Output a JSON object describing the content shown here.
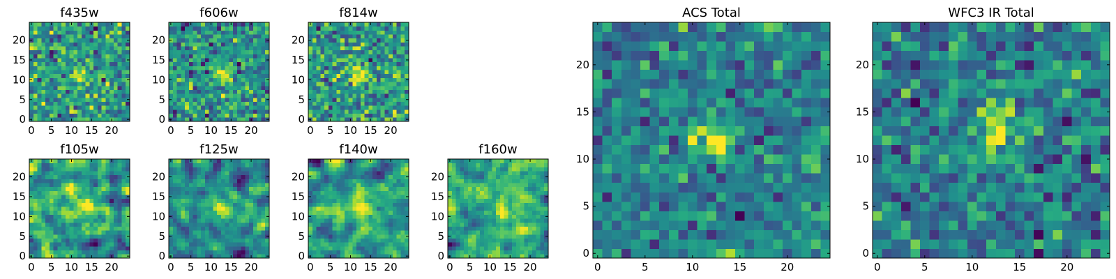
{
  "chart_data": [
    {
      "type": "heatmap",
      "title": "f435w",
      "size": 25,
      "xticks": [
        0,
        5,
        10,
        15,
        20
      ],
      "yticks": [
        0,
        5,
        10,
        15,
        20
      ],
      "seed": 11,
      "sources": [
        {
          "x": 12,
          "y": 11.5,
          "sx": 1.6,
          "sy": 1.6,
          "amp": 2.2
        }
      ],
      "noise": 1.0,
      "colormap": "viridis"
    },
    {
      "type": "heatmap",
      "title": "f606w",
      "size": 25,
      "xticks": [
        0,
        5,
        10,
        15,
        20
      ],
      "yticks": [
        0,
        5,
        10,
        15,
        20
      ],
      "seed": 23,
      "sources": [
        {
          "x": 13,
          "y": 11.5,
          "sx": 1.6,
          "sy": 1.6,
          "amp": 2.6
        }
      ],
      "noise": 1.0,
      "colormap": "viridis"
    },
    {
      "type": "heatmap",
      "title": "f814w",
      "size": 25,
      "xticks": [
        0,
        5,
        10,
        15,
        20
      ],
      "yticks": [
        0,
        5,
        10,
        15,
        20
      ],
      "seed": 37,
      "sources": [
        {
          "x": 12.5,
          "y": 11.5,
          "sx": 1.5,
          "sy": 1.5,
          "amp": 2.2
        }
      ],
      "noise": 1.0,
      "colormap": "viridis"
    },
    {
      "type": "heatmap",
      "title": "f105w",
      "size": 25,
      "xticks": [
        0,
        5,
        10,
        15,
        20
      ],
      "yticks": [
        0,
        5,
        10,
        15,
        20
      ],
      "seed": 41,
      "sources": [
        {
          "x": 13.5,
          "y": 12.5,
          "sx": 1.6,
          "sy": 2.0,
          "amp": 2.4
        }
      ],
      "noise": 0.9,
      "colormap": "viridis",
      "smooth": true
    },
    {
      "type": "heatmap",
      "title": "f125w",
      "size": 25,
      "xticks": [
        0,
        5,
        10,
        15,
        20
      ],
      "yticks": [
        0,
        5,
        10,
        15,
        20
      ],
      "seed": 53,
      "sources": [
        {
          "x": 13,
          "y": 12.5,
          "sx": 1.6,
          "sy": 2.0,
          "amp": 2.0
        },
        {
          "x": 22.5,
          "y": 7.5,
          "sx": 1.5,
          "sy": 1.5,
          "amp": 1.6
        }
      ],
      "noise": 0.9,
      "colormap": "viridis",
      "smooth": true
    },
    {
      "type": "heatmap",
      "title": "f140w",
      "size": 25,
      "xticks": [
        0,
        5,
        10,
        15,
        20
      ],
      "yticks": [
        0,
        5,
        10,
        15,
        20
      ],
      "seed": 67,
      "sources": [
        {
          "x": 12.5,
          "y": 12.5,
          "sx": 1.6,
          "sy": 2.2,
          "amp": 1.8
        }
      ],
      "noise": 0.9,
      "colormap": "viridis",
      "smooth": true
    },
    {
      "type": "heatmap",
      "title": "f160w",
      "size": 25,
      "xticks": [
        0,
        5,
        10,
        15,
        20
      ],
      "yticks": [
        0,
        5,
        10,
        15,
        20
      ],
      "seed": 79,
      "sources": [
        {
          "x": 13,
          "y": 12,
          "sx": 1.0,
          "sy": 3.0,
          "amp": 2.6
        }
      ],
      "noise": 1.0,
      "colormap": "viridis",
      "smooth": true
    },
    {
      "type": "heatmap",
      "title": "ACS Total",
      "size": 25,
      "xticks": [
        0,
        5,
        10,
        15,
        20
      ],
      "yticks": [
        0,
        5,
        10,
        15,
        20
      ],
      "seed": 97,
      "sources": [
        {
          "x": 12,
          "y": 12,
          "sx": 1.5,
          "sy": 1.3,
          "amp": 2.6
        }
      ],
      "noise": 0.8,
      "colormap": "viridis"
    },
    {
      "type": "heatmap",
      "title": "WFC3 IR Total",
      "size": 25,
      "xticks": [
        0,
        5,
        10,
        15,
        20
      ],
      "yticks": [
        0,
        5,
        10,
        15,
        20
      ],
      "seed": 131,
      "sources": [
        {
          "x": 12.5,
          "y": 13,
          "sx": 1.2,
          "sy": 2.2,
          "amp": 2.8
        }
      ],
      "noise": 0.8,
      "colormap": "viridis"
    }
  ]
}
